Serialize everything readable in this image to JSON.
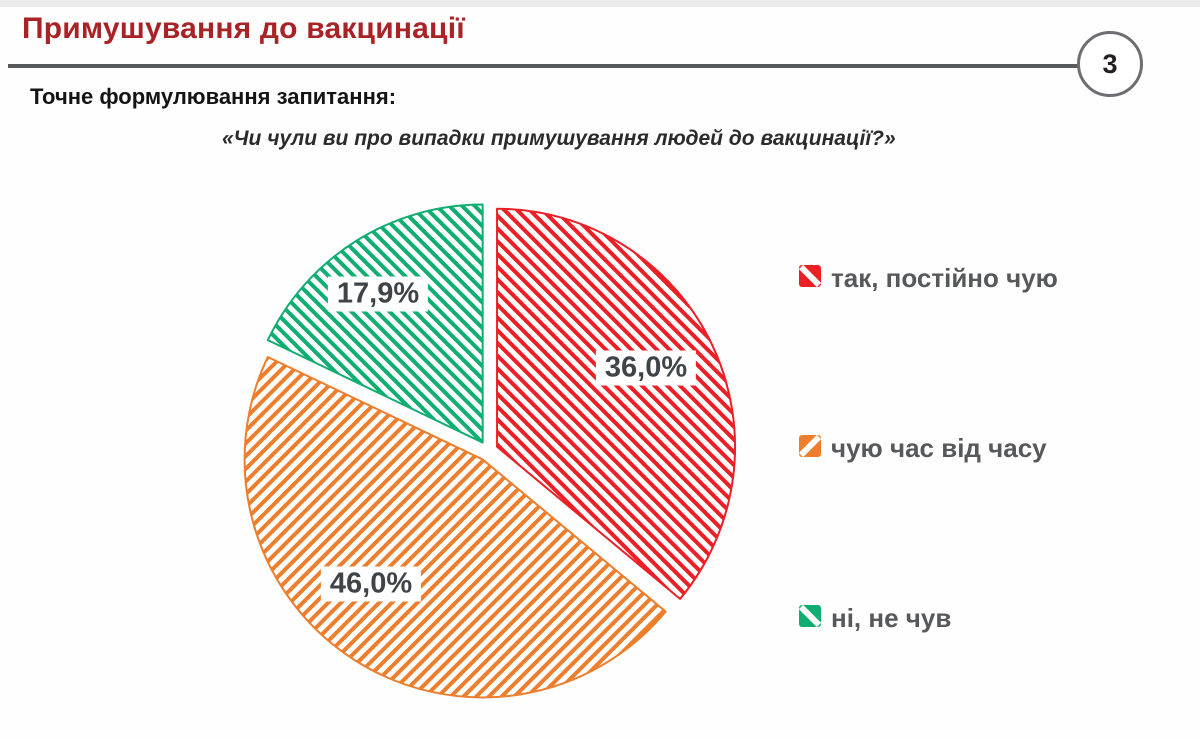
{
  "header": {
    "title": "Примушування до вакцинації",
    "page_number": "3"
  },
  "question": {
    "label": "Точне формулювання запитання:",
    "quote": "«Чи чули ви про випадки примушування людей до вакцинації?»"
  },
  "chart_data": {
    "type": "pie",
    "title": "Чи чули ви про випадки примушування людей до вакцинації?",
    "categories": [
      "так, постійно чую",
      "чую час від часу",
      "ні, не чув"
    ],
    "values": [
      36.0,
      46.0,
      17.9
    ],
    "display_labels": [
      "36,0%",
      "46,0%",
      "17,9%"
    ],
    "colors": [
      "#EC1F26",
      "#EC7E2D",
      "#10AE71"
    ],
    "hatch": [
      "diag-down",
      "diag-up",
      "diag-down"
    ],
    "start_angle_deg": 0,
    "direction": "clockwise",
    "exploded": true,
    "legend_position": "right",
    "label_format": "percent, comma decimal separator"
  },
  "legend": {
    "items": [
      {
        "label": "так, постійно чую",
        "color": "#EC1F26",
        "hatch": "diag-down"
      },
      {
        "label": "чую час від часу",
        "color": "#EC7E2D",
        "hatch": "diag-up"
      },
      {
        "label": "ні, не чув",
        "color": "#10AE71",
        "hatch": "diag-down"
      }
    ]
  }
}
